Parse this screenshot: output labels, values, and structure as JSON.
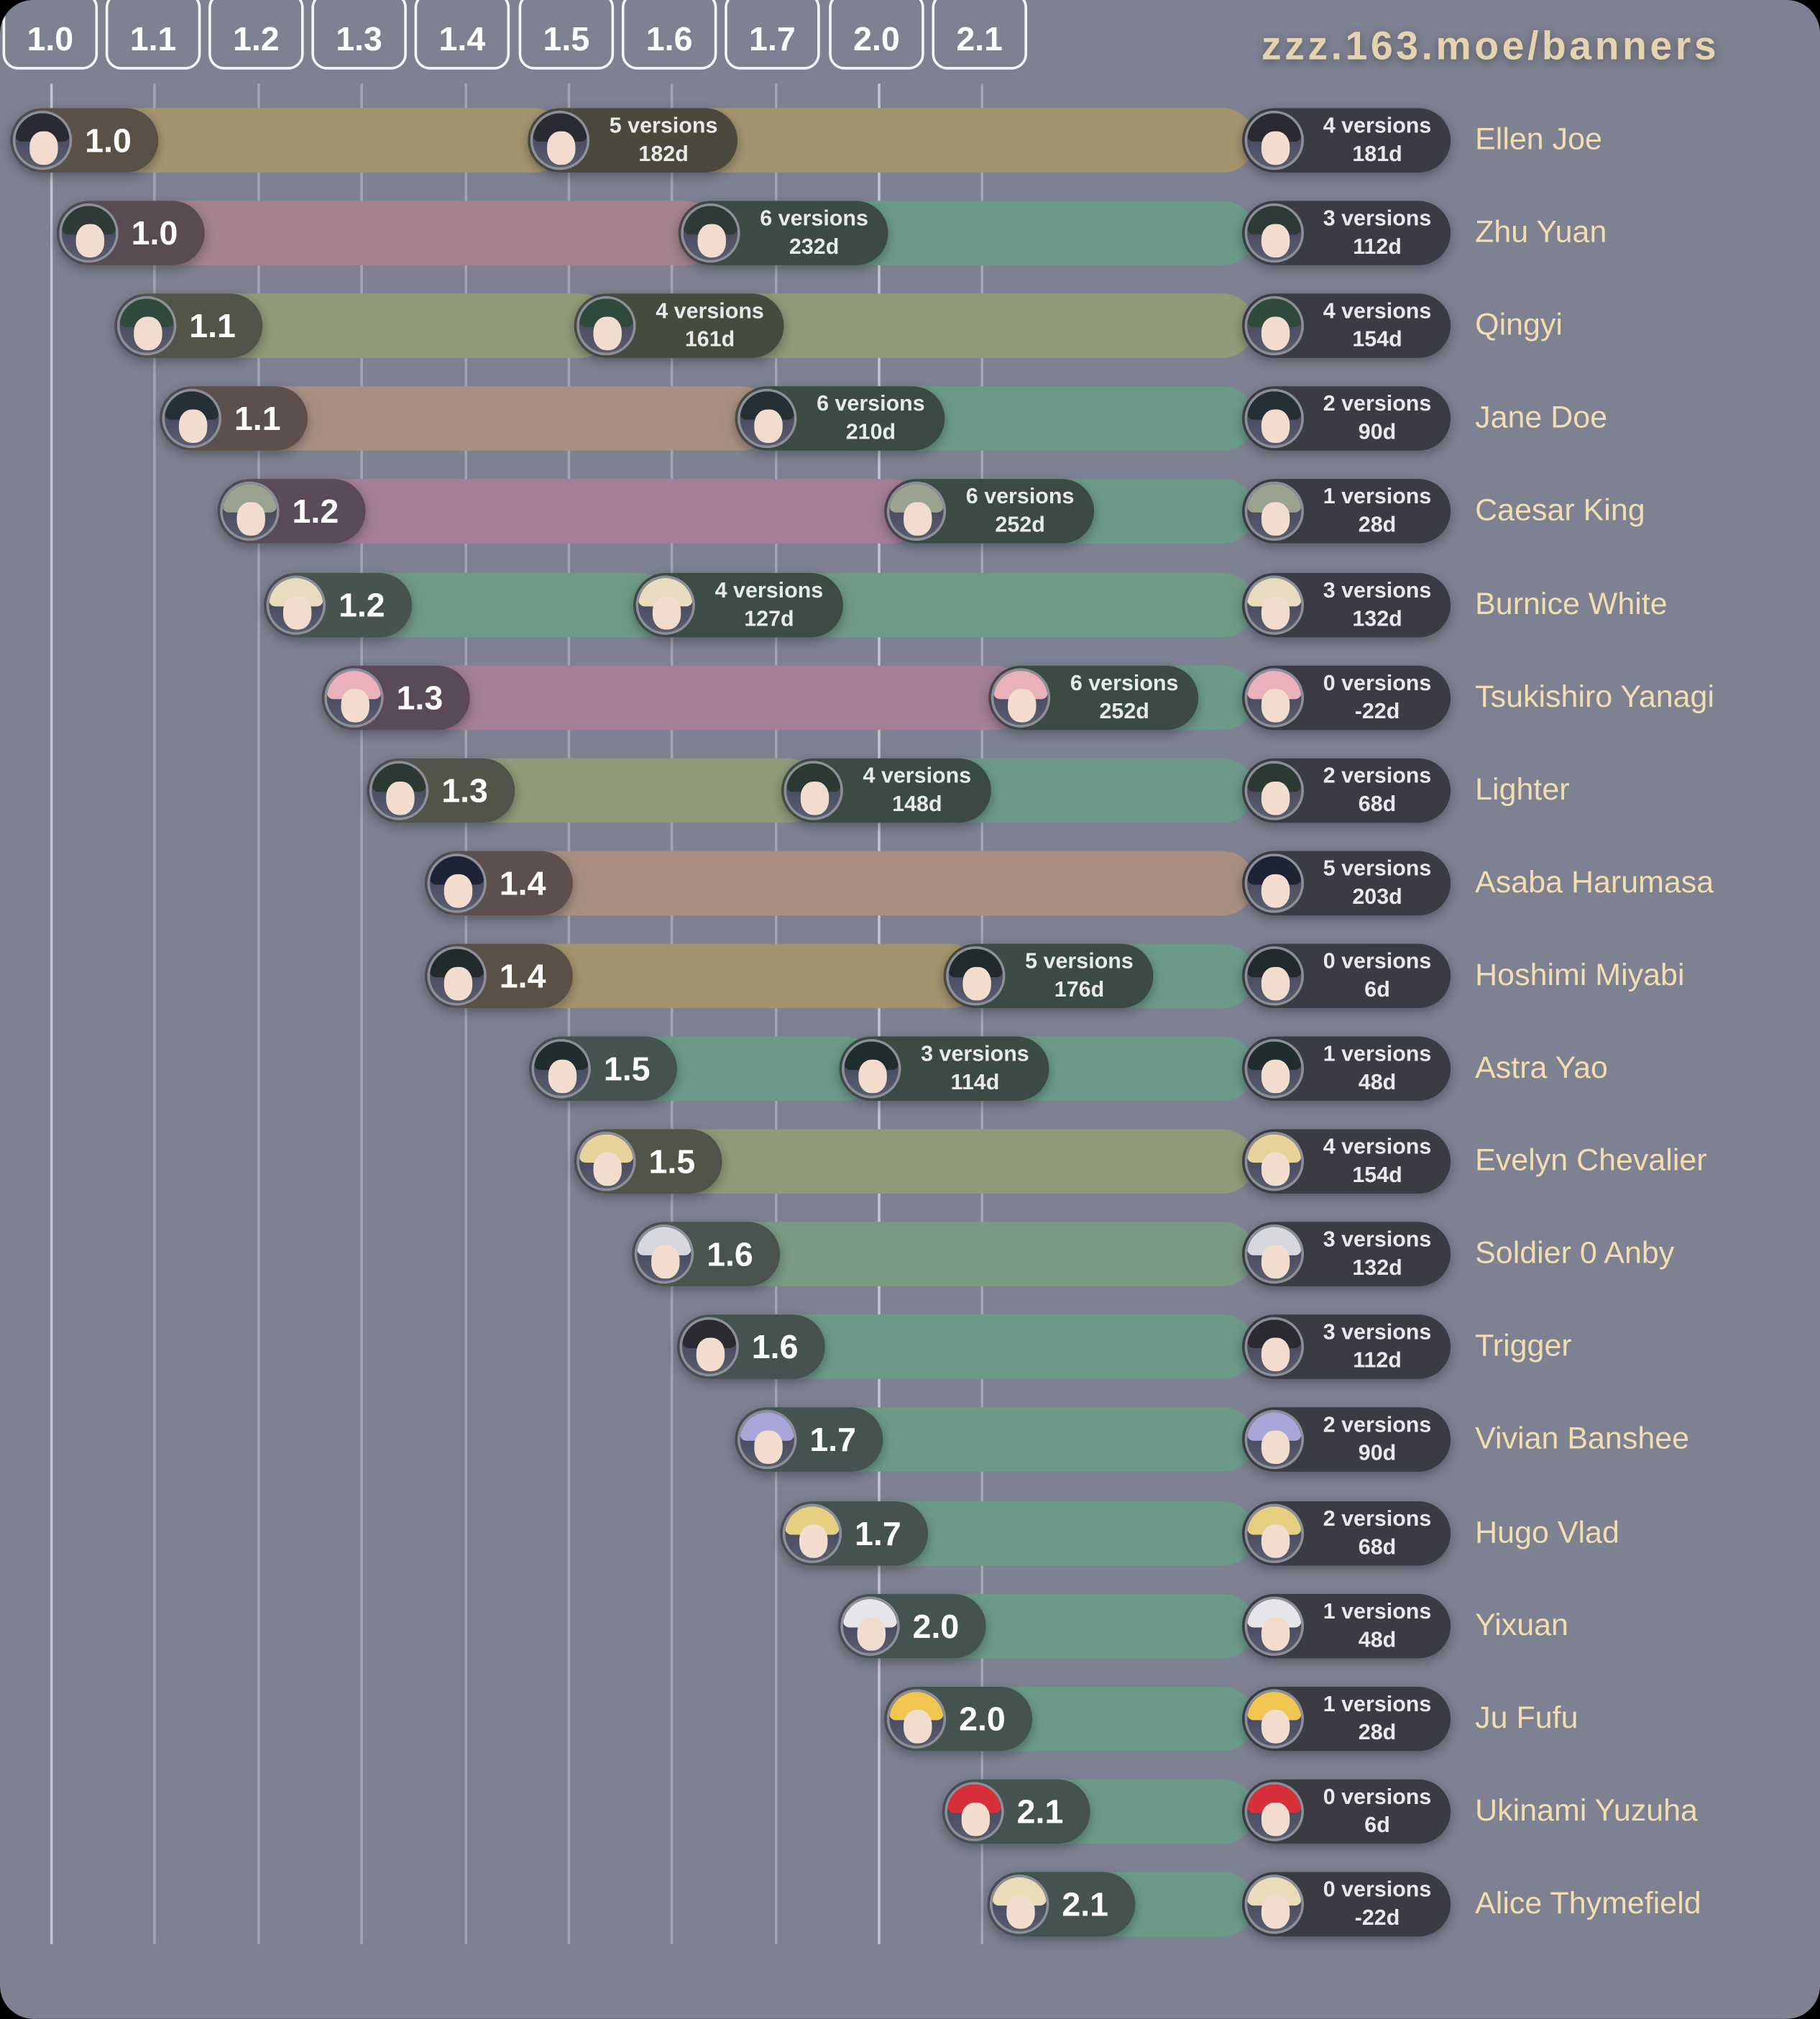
{
  "title": "zzz.163.moe/banners",
  "versions": [
    "1.0",
    "1.1",
    "1.2",
    "1.3",
    "1.4",
    "1.5",
    "1.6",
    "1.7",
    "2.0",
    "2.1"
  ],
  "colors": {
    "background": "#7e8191",
    "end_pill": "#3b3c43",
    "name_text": "#f2ddb0",
    "title_text": "#e4d3ae"
  },
  "characters": [
    {
      "name": "Ellen Joe",
      "start": "1.0",
      "mid": {
        "versions": "5 versions",
        "days": "182d"
      },
      "end": {
        "versions": "4 versions",
        "days": "181d"
      },
      "seg1": "#a3946e",
      "seg2": "#a3946e",
      "hair": "#2a2a32"
    },
    {
      "name": "Zhu Yuan",
      "start": "1.0",
      "mid": {
        "versions": "6 versions",
        "days": "232d"
      },
      "end": {
        "versions": "3 versions",
        "days": "112d"
      },
      "seg1": "#a4838e",
      "seg2": "#6b9a88",
      "hair": "#2d3a35"
    },
    {
      "name": "Qingyi",
      "start": "1.1",
      "mid": {
        "versions": "4 versions",
        "days": "161d"
      },
      "end": {
        "versions": "4 versions",
        "days": "154d"
      },
      "seg1": "#8f9a78",
      "seg2": "#8f9a78",
      "hair": "#2f4a3c"
    },
    {
      "name": "Jane Doe",
      "start": "1.1",
      "mid": {
        "versions": "6 versions",
        "days": "210d"
      },
      "end": {
        "versions": "2 versions",
        "days": "90d"
      },
      "seg1": "#a88f82",
      "seg2": "#6b9a88",
      "hair": "#253034"
    },
    {
      "name": "Caesar King",
      "start": "1.2",
      "mid": {
        "versions": "6 versions",
        "days": "252d"
      },
      "end": {
        "versions": "1 versions",
        "days": "28d"
      },
      "seg1": "#a47f98",
      "seg2": "#6b9a88",
      "hair": "#9aa38e"
    },
    {
      "name": "Burnice White",
      "start": "1.2",
      "mid": {
        "versions": "4 versions",
        "days": "127d"
      },
      "end": {
        "versions": "3 versions",
        "days": "132d"
      },
      "seg1": "#6f9a85",
      "seg2": "#6f9a85",
      "hair": "#e8dcc0"
    },
    {
      "name": "Tsukishiro Yanagi",
      "start": "1.3",
      "mid": {
        "versions": "6 versions",
        "days": "252d"
      },
      "end": {
        "versions": "0 versions",
        "days": "-22d"
      },
      "seg1": "#a47f98",
      "seg2": "#6b9a88",
      "hair": "#eab0bc"
    },
    {
      "name": "Lighter",
      "start": "1.3",
      "mid": {
        "versions": "4 versions",
        "days": "148d"
      },
      "end": {
        "versions": "2 versions",
        "days": "68d"
      },
      "seg1": "#8f9a78",
      "seg2": "#6b9a88",
      "hair": "#2a3a32"
    },
    {
      "name": "Asaba Harumasa",
      "start": "1.4",
      "mid": null,
      "end": {
        "versions": "5 versions",
        "days": "203d"
      },
      "seg1": "#a88f82",
      "seg2": "#a88f82",
      "hair": "#1e2436"
    },
    {
      "name": "Hoshimi Miyabi",
      "start": "1.4",
      "mid": {
        "versions": "5 versions",
        "days": "176d"
      },
      "end": {
        "versions": "0 versions",
        "days": "6d"
      },
      "seg1": "#a3946e",
      "seg2": "#6b9a88",
      "hair": "#222a2c"
    },
    {
      "name": "Astra Yao",
      "start": "1.5",
      "mid": {
        "versions": "3 versions",
        "days": "114d"
      },
      "end": {
        "versions": "1 versions",
        "days": "48d"
      },
      "seg1": "#6b9a88",
      "seg2": "#6b9a88",
      "hair": "#1f2e2c"
    },
    {
      "name": "Evelyn Chevalier",
      "start": "1.5",
      "mid": null,
      "end": {
        "versions": "4 versions",
        "days": "154d"
      },
      "seg1": "#8f9a78",
      "seg2": "#8f9a78",
      "hair": "#e6d29a"
    },
    {
      "name": "Soldier 0 Anby",
      "start": "1.6",
      "mid": null,
      "end": {
        "versions": "3 versions",
        "days": "132d"
      },
      "seg1": "#7a9a84",
      "seg2": "#7a9a84",
      "hair": "#d6d8de"
    },
    {
      "name": "Trigger",
      "start": "1.6",
      "mid": null,
      "end": {
        "versions": "3 versions",
        "days": "112d"
      },
      "seg1": "#6b9a88",
      "seg2": "#6b9a88",
      "hair": "#2a2a30"
    },
    {
      "name": "Vivian Banshee",
      "start": "1.7",
      "mid": null,
      "end": {
        "versions": "2 versions",
        "days": "90d"
      },
      "seg1": "#6b9a88",
      "seg2": "#6b9a88",
      "hair": "#a8a6d8"
    },
    {
      "name": "Hugo Vlad",
      "start": "1.7",
      "mid": null,
      "end": {
        "versions": "2 versions",
        "days": "68d"
      },
      "seg1": "#6b9a88",
      "seg2": "#6b9a88",
      "hair": "#e6cf80"
    },
    {
      "name": "Yixuan",
      "start": "2.0",
      "mid": null,
      "end": {
        "versions": "1 versions",
        "days": "48d"
      },
      "seg1": "#6b9a88",
      "seg2": "#6b9a88",
      "hair": "#e6e6ea"
    },
    {
      "name": "Ju Fufu",
      "start": "2.0",
      "mid": null,
      "end": {
        "versions": "1 versions",
        "days": "28d"
      },
      "seg1": "#6b9a88",
      "seg2": "#6b9a88",
      "hair": "#f0c650"
    },
    {
      "name": "Ukinami Yuzuha",
      "start": "2.1",
      "mid": null,
      "end": {
        "versions": "0 versions",
        "days": "6d"
      },
      "seg1": "#6b9a88",
      "seg2": "#6b9a88",
      "hair": "#d8303a"
    },
    {
      "name": "Alice Thymefield",
      "start": "2.1",
      "mid": null,
      "end": {
        "versions": "0 versions",
        "days": "-22d"
      },
      "seg1": "#6b9a88",
      "seg2": "#6b9a88",
      "hair": "#eadcb8"
    }
  ]
}
